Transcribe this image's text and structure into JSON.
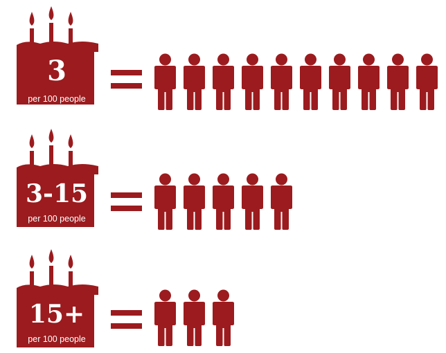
{
  "theme": {
    "cake_color": "#9b1b1e",
    "text_color": "#ffffff"
  },
  "rows": [
    {
      "value": "3",
      "caption": "per 100 people",
      "people_count": 10
    },
    {
      "value": "3-15",
      "caption": "per 100 people",
      "people_count": 5
    },
    {
      "value": "15+",
      "caption": "per 100 people",
      "people_count": 3
    }
  ]
}
